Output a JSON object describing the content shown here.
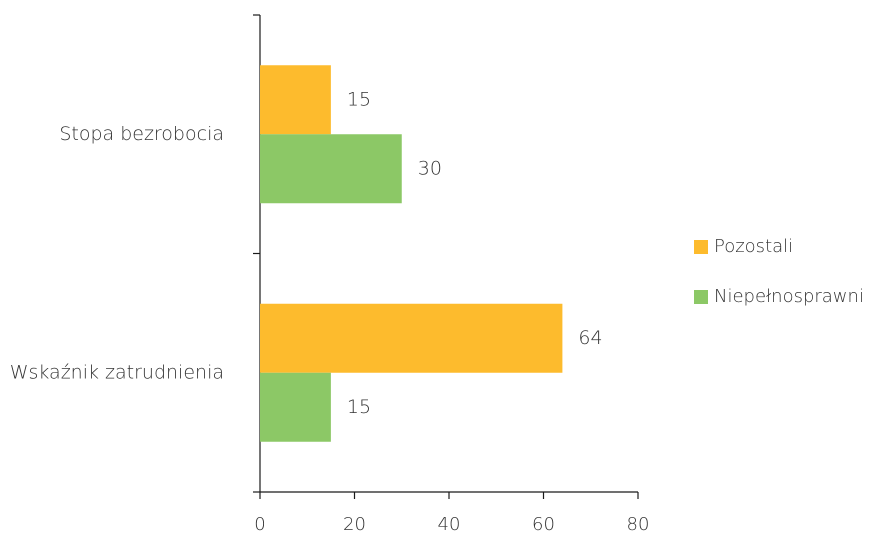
{
  "chart_data": {
    "type": "bar",
    "orientation": "horizontal",
    "categories": [
      "Stopa bezrobocia",
      "Wskaźnik zatrudnienia"
    ],
    "series": [
      {
        "name": "Pozostali",
        "color": "#FDBB2D",
        "values": [
          15,
          64
        ]
      },
      {
        "name": "Niepełnosprawni",
        "color": "#8CC866",
        "values": [
          30,
          15
        ]
      }
    ],
    "xlim": [
      0,
      80
    ],
    "xticks": [
      0,
      20,
      40,
      60,
      80
    ],
    "data_labels": true,
    "grid": false,
    "legend_position": "right",
    "title": "",
    "xlabel": "",
    "ylabel": ""
  }
}
